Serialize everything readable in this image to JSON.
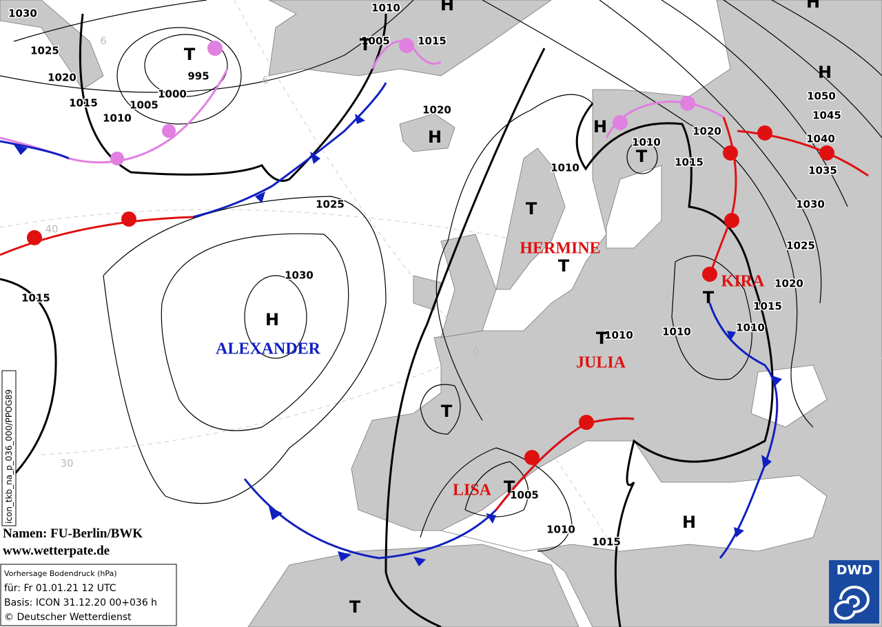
{
  "map": {
    "isobar_labels": [
      "1030",
      "1025",
      "1020",
      "1015",
      "1010",
      "1005",
      "1000",
      "995",
      "1010",
      "1005",
      "1015",
      "1020",
      "1010",
      "1025",
      "1030",
      "1015",
      "1010",
      "1015",
      "1020",
      "1050",
      "1045",
      "1040",
      "1035",
      "1030",
      "1025",
      "1020",
      "1015",
      "1010",
      "1010",
      "1010",
      "1005",
      "1010",
      "1015"
    ],
    "centers": [
      "T",
      "T",
      "H",
      "H",
      "H",
      "T",
      "T",
      "T",
      "T",
      "H",
      "H",
      "H",
      "T",
      "T",
      "T",
      "H",
      "T"
    ],
    "system_names": [
      "HERMINE",
      "KIRA",
      "JULIA",
      "ALEXANDER",
      "LISA"
    ],
    "grid_labels": [
      "6",
      "6",
      "40",
      "30",
      "0"
    ],
    "side_label": "icon_tkb_na_p_036_000/PPOG89",
    "credits": [
      "Namen: FU-Berlin/BWK",
      "www.wetterpate.de"
    ],
    "info_box": [
      "Vorhersage Bodendruck (hPa)",
      "für:  Fr 01.01.21  12 UTC",
      "Basis: ICON  31.12.20 00+036 h",
      "© Deutscher Wetterdienst"
    ],
    "logo": "DWD"
  }
}
